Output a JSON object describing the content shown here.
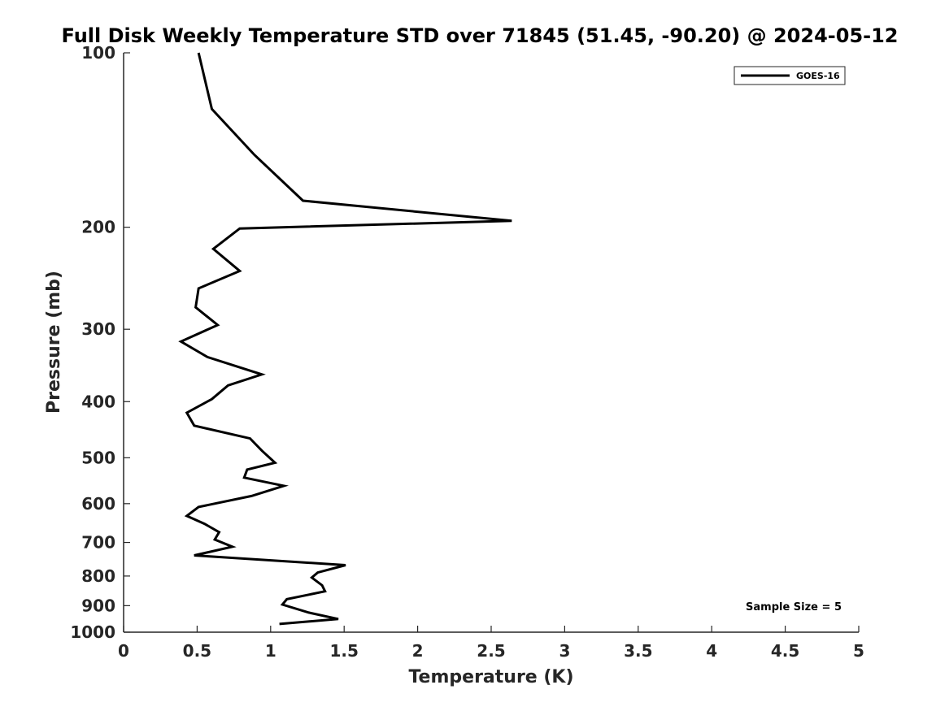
{
  "chart_data": {
    "type": "line",
    "title": "Full Disk Weekly Temperature STD over 71845 (51.45, -90.20) @ 2024-05-12",
    "xlabel": "Temperature (K)",
    "ylabel": "Pressure (mb)",
    "xlim": [
      0,
      5
    ],
    "ylim": [
      100,
      1000
    ],
    "y_scale": "log",
    "y_reversed": true,
    "x_ticks": [
      0,
      0.5,
      1,
      1.5,
      2,
      2.5,
      3,
      3.5,
      4,
      4.5,
      5
    ],
    "x_tick_labels": [
      "0",
      "0.5",
      "1",
      "1.5",
      "2",
      "2.5",
      "3",
      "3.5",
      "4",
      "4.5",
      "5"
    ],
    "y_ticks": [
      100,
      200,
      300,
      400,
      500,
      600,
      700,
      800,
      900,
      1000
    ],
    "y_tick_labels": [
      "100",
      "200",
      "300",
      "400",
      "500",
      "600",
      "700",
      "800",
      "900",
      "1000"
    ],
    "grid": false,
    "legend": {
      "placement": "top-right",
      "entries": [
        "GOES-16"
      ]
    },
    "annotation": "Sample Size = 5",
    "series": [
      {
        "name": "GOES-16",
        "color": "#000000",
        "points": [
          [
            0.51,
            100
          ],
          [
            0.6,
            125
          ],
          [
            0.89,
            150
          ],
          [
            1.22,
            180
          ],
          [
            2.64,
            195
          ],
          [
            0.79,
            201
          ],
          [
            0.61,
            218
          ],
          [
            0.79,
            238
          ],
          [
            0.51,
            255
          ],
          [
            0.49,
            275
          ],
          [
            0.64,
            295
          ],
          [
            0.39,
            315
          ],
          [
            0.57,
            335
          ],
          [
            0.94,
            359
          ],
          [
            0.71,
            375
          ],
          [
            0.6,
            396
          ],
          [
            0.43,
            418
          ],
          [
            0.48,
            440
          ],
          [
            0.86,
            463
          ],
          [
            0.94,
            486
          ],
          [
            1.03,
            510
          ],
          [
            0.84,
            524
          ],
          [
            0.82,
            541
          ],
          [
            1.09,
            559
          ],
          [
            0.87,
            582
          ],
          [
            0.51,
            608
          ],
          [
            0.43,
            630
          ],
          [
            0.55,
            650
          ],
          [
            0.65,
            672
          ],
          [
            0.62,
            692
          ],
          [
            0.74,
            712
          ],
          [
            0.48,
            737
          ],
          [
            1.51,
            766
          ],
          [
            1.32,
            789
          ],
          [
            1.28,
            805
          ],
          [
            1.35,
            830
          ],
          [
            1.37,
            850
          ],
          [
            1.11,
            877
          ],
          [
            1.08,
            896
          ],
          [
            1.26,
            925
          ],
          [
            1.46,
            949
          ],
          [
            1.06,
            968
          ]
        ]
      }
    ]
  }
}
